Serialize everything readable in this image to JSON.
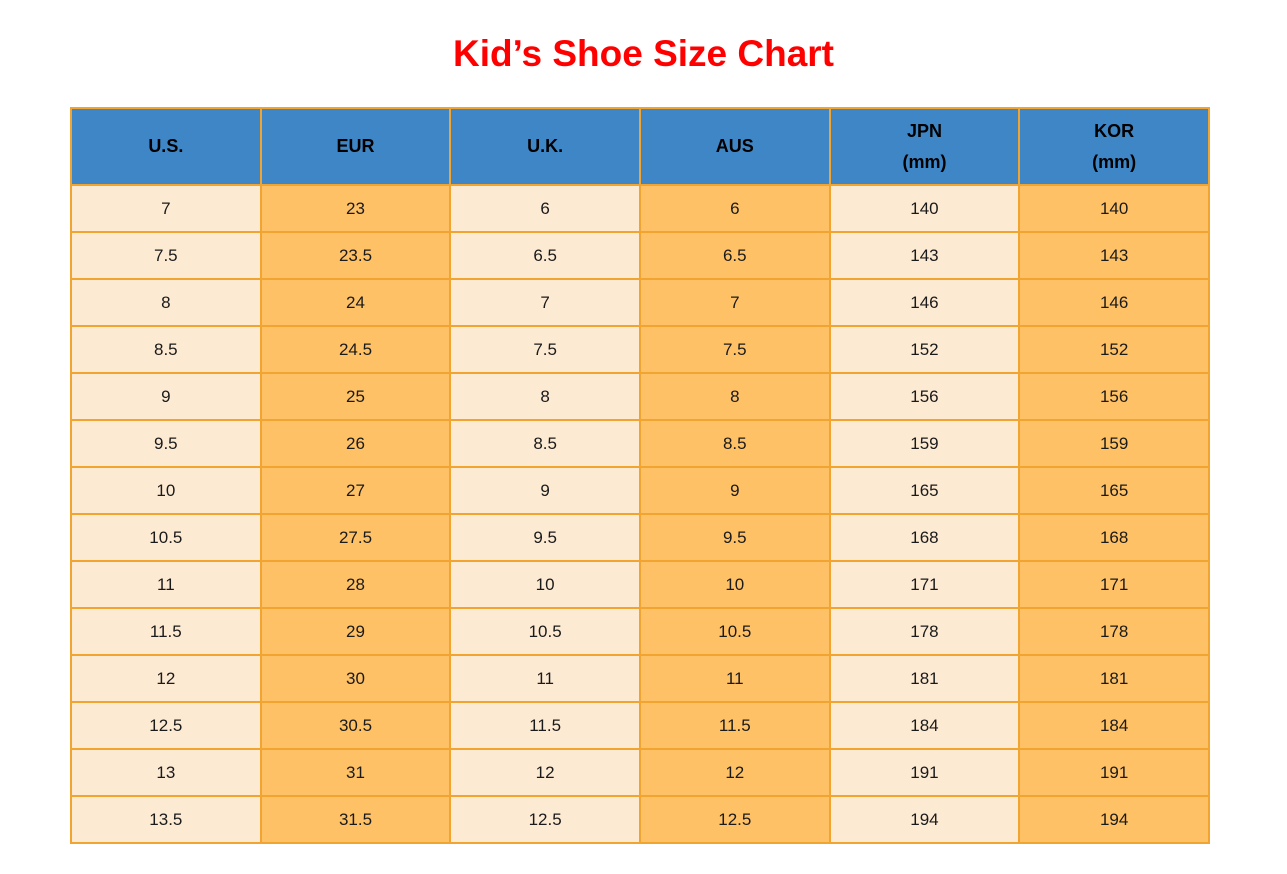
{
  "title": {
    "text": "Kid’s Shoe Size Chart",
    "color": "#FF0000"
  },
  "chart_data": {
    "type": "table",
    "title": "Kid’s Shoe Size Chart",
    "columns": [
      {
        "label": "U.S.",
        "sub": "",
        "fill": "cream"
      },
      {
        "label": "EUR",
        "sub": "",
        "fill": "orange"
      },
      {
        "label": "U.K.",
        "sub": "",
        "fill": "cream"
      },
      {
        "label": "AUS",
        "sub": "",
        "fill": "orange"
      },
      {
        "label": "JPN",
        "sub": "(mm)",
        "fill": "cream"
      },
      {
        "label": "KOR",
        "sub": "(mm)",
        "fill": "orange"
      }
    ],
    "rows": [
      [
        "7",
        "23",
        "6",
        "6",
        "140",
        "140"
      ],
      [
        "7.5",
        "23.5",
        "6.5",
        "6.5",
        "143",
        "143"
      ],
      [
        "8",
        "24",
        "7",
        "7",
        "146",
        "146"
      ],
      [
        "8.5",
        "24.5",
        "7.5",
        "7.5",
        "152",
        "152"
      ],
      [
        "9",
        "25",
        "8",
        "8",
        "156",
        "156"
      ],
      [
        "9.5",
        "26",
        "8.5",
        "8.5",
        "159",
        "159"
      ],
      [
        "10",
        "27",
        "9",
        "9",
        "165",
        "165"
      ],
      [
        "10.5",
        "27.5",
        "9.5",
        "9.5",
        "168",
        "168"
      ],
      [
        "11",
        "28",
        "10",
        "10",
        "171",
        "171"
      ],
      [
        "11.5",
        "29",
        "10.5",
        "10.5",
        "178",
        "178"
      ],
      [
        "12",
        "30",
        "11",
        "11",
        "181",
        "181"
      ],
      [
        "12.5",
        "30.5",
        "11.5",
        "11.5",
        "184",
        "184"
      ],
      [
        "13",
        "31",
        "12",
        "12",
        "191",
        "191"
      ],
      [
        "13.5",
        "31.5",
        "12.5",
        "12.5",
        "194",
        "194"
      ]
    ],
    "layout": {
      "grid": true,
      "header_rows": 1,
      "column_fill_pattern": [
        "cream",
        "orange",
        "cream",
        "orange",
        "cream",
        "orange"
      ]
    },
    "colors": {
      "title_text": "#FF0000",
      "header_fill": "#3E86C6",
      "header_text": "#000000",
      "cream_fill": "#FDEAD3",
      "orange_fill": "#FFC166",
      "border": "#F2A431",
      "body_text": "#1A1A1A",
      "page_background": "#FFFFFF"
    }
  }
}
